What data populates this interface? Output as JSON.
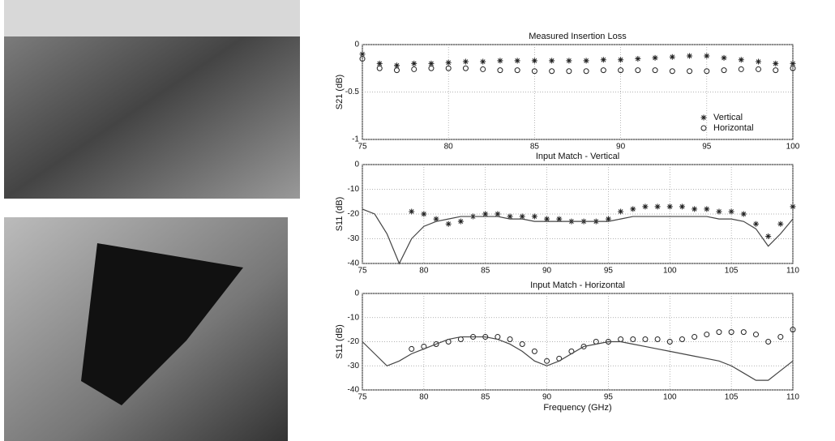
{
  "chart_data": [
    {
      "type": "line",
      "title": "Measured Insertion Loss",
      "y_label": "S21 (dB)",
      "xlim": [
        75,
        100
      ],
      "xticks": [
        75,
        80,
        85,
        90,
        95,
        100
      ],
      "ylim": [
        -1,
        0
      ],
      "yticks": [
        -1,
        -0.5,
        0
      ],
      "grid": true,
      "legend": "lower right",
      "series": [
        {
          "name": "Vertical",
          "marker": "star",
          "color": "#222",
          "x": [
            75,
            76,
            77,
            78,
            79,
            80,
            81,
            82,
            83,
            84,
            85,
            86,
            87,
            88,
            89,
            90,
            91,
            92,
            93,
            94,
            95,
            96,
            97,
            98,
            99,
            100
          ],
          "values": [
            -0.1,
            -0.2,
            -0.22,
            -0.2,
            -0.2,
            -0.19,
            -0.18,
            -0.18,
            -0.17,
            -0.17,
            -0.17,
            -0.17,
            -0.17,
            -0.17,
            -0.16,
            -0.16,
            -0.15,
            -0.14,
            -0.13,
            -0.12,
            -0.12,
            -0.14,
            -0.16,
            -0.18,
            -0.2,
            -0.2
          ]
        },
        {
          "name": "Horizontal",
          "marker": "circle",
          "color": "#222",
          "x": [
            75,
            76,
            77,
            78,
            79,
            80,
            81,
            82,
            83,
            84,
            85,
            86,
            87,
            88,
            89,
            90,
            91,
            92,
            93,
            94,
            95,
            96,
            97,
            98,
            99,
            100
          ],
          "values": [
            -0.15,
            -0.25,
            -0.27,
            -0.26,
            -0.25,
            -0.25,
            -0.25,
            -0.26,
            -0.27,
            -0.27,
            -0.28,
            -0.28,
            -0.28,
            -0.28,
            -0.27,
            -0.27,
            -0.27,
            -0.27,
            -0.28,
            -0.28,
            -0.28,
            -0.27,
            -0.26,
            -0.26,
            -0.27,
            -0.25
          ]
        }
      ]
    },
    {
      "type": "line",
      "title": "Input Match - Vertical",
      "y_label": "S11 (dB)",
      "xlim": [
        75,
        110
      ],
      "xticks": [
        75,
        80,
        85,
        90,
        95,
        100,
        105,
        110
      ],
      "ylim": [
        -40,
        0
      ],
      "yticks": [
        -40,
        -30,
        -20,
        -10,
        0
      ],
      "grid": true,
      "series": [
        {
          "marker": "star",
          "color": "#222",
          "x": [
            79,
            80,
            81,
            82,
            83,
            84,
            85,
            86,
            87,
            88,
            89,
            90,
            91,
            92,
            93,
            94,
            95,
            96,
            97,
            98,
            99,
            100,
            101,
            102,
            103,
            104,
            105,
            106,
            107,
            108,
            109,
            110
          ],
          "values": [
            -19,
            -20,
            -22,
            -24,
            -23,
            -21,
            -20,
            -20,
            -21,
            -21,
            -21,
            -22,
            -22,
            -23,
            -23,
            -23,
            -22,
            -19,
            -18,
            -17,
            -17,
            -17,
            -17,
            -18,
            -18,
            -19,
            -19,
            -20,
            -24,
            -29,
            -24,
            -17
          ]
        },
        {
          "marker": null,
          "color": "#444",
          "x": [
            75,
            76,
            77,
            78,
            79,
            80,
            81,
            82,
            83,
            84,
            85,
            86,
            87,
            88,
            89,
            90,
            91,
            92,
            93,
            94,
            95,
            96,
            97,
            98,
            99,
            100,
            101,
            102,
            103,
            104,
            105,
            106,
            107,
            108,
            109,
            110
          ],
          "values": [
            -18,
            -20,
            -28,
            -40,
            -30,
            -25,
            -23,
            -22,
            -21,
            -21,
            -21,
            -21,
            -22,
            -22,
            -23,
            -23,
            -23,
            -23,
            -23,
            -23,
            -23,
            -22,
            -21,
            -21,
            -21,
            -21,
            -21,
            -21,
            -21,
            -22,
            -22,
            -23,
            -26,
            -33,
            -28,
            -22
          ]
        }
      ]
    },
    {
      "type": "line",
      "title": "Input Match - Horizontal",
      "y_label": "S11 (dB)",
      "x_label": "Frequency (GHz)",
      "xlim": [
        75,
        110
      ],
      "xticks": [
        75,
        80,
        85,
        90,
        95,
        100,
        105,
        110
      ],
      "ylim": [
        -40,
        0
      ],
      "yticks": [
        -40,
        -30,
        -20,
        -10,
        0
      ],
      "grid": true,
      "series": [
        {
          "marker": "circle",
          "color": "#222",
          "x": [
            79,
            80,
            81,
            82,
            83,
            84,
            85,
            86,
            87,
            88,
            89,
            90,
            91,
            92,
            93,
            94,
            95,
            96,
            97,
            98,
            99,
            100,
            101,
            102,
            103,
            104,
            105,
            106,
            107,
            108,
            109,
            110
          ],
          "values": [
            -23,
            -22,
            -21,
            -20,
            -19,
            -18,
            -18,
            -18,
            -19,
            -21,
            -24,
            -28,
            -27,
            -24,
            -22,
            -20,
            -20,
            -19,
            -19,
            -19,
            -19,
            -20,
            -19,
            -18,
            -17,
            -16,
            -16,
            -16,
            -17,
            -20,
            -18,
            -15
          ]
        },
        {
          "marker": null,
          "color": "#444",
          "x": [
            75,
            76,
            77,
            78,
            79,
            80,
            81,
            82,
            83,
            84,
            85,
            86,
            87,
            88,
            89,
            90,
            91,
            92,
            93,
            94,
            95,
            96,
            97,
            98,
            99,
            100,
            101,
            102,
            103,
            104,
            105,
            106,
            107,
            108,
            109,
            110
          ],
          "values": [
            -20,
            -25,
            -30,
            -28,
            -25,
            -23,
            -21,
            -19,
            -18,
            -18,
            -18,
            -19,
            -21,
            -24,
            -28,
            -30,
            -28,
            -25,
            -22,
            -21,
            -20,
            -20,
            -21,
            -22,
            -23,
            -24,
            -25,
            -26,
            -27,
            -28,
            -30,
            -33,
            -36,
            -36,
            -32,
            -28
          ]
        }
      ]
    }
  ]
}
